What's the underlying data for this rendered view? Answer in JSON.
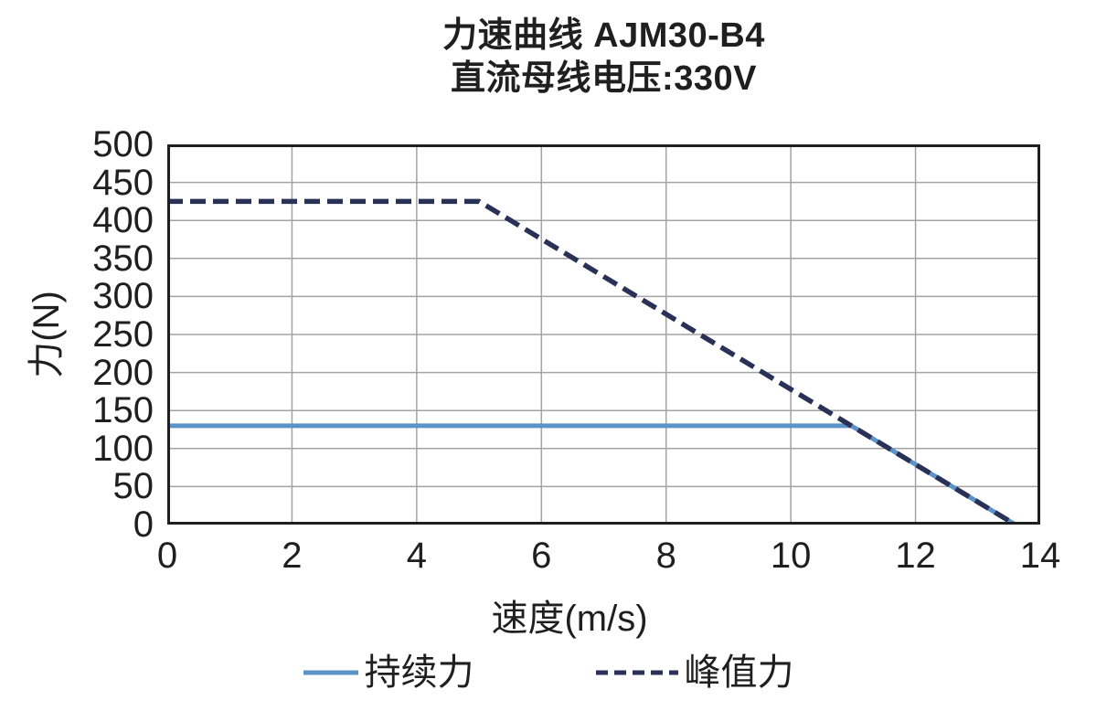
{
  "title": {
    "line1": "力速曲线 AJM30-B4",
    "line2": "直流母线电压:330V"
  },
  "chart_data": {
    "type": "line",
    "title": "力速曲线 AJM30-B4",
    "subtitle": "直流母线电压:330V",
    "xlabel": "速度(m/s)",
    "ylabel": "力(N)",
    "xlim": [
      0,
      14
    ],
    "ylim": [
      0,
      500
    ],
    "x_ticks": [
      0,
      2,
      4,
      6,
      8,
      10,
      12,
      14
    ],
    "y_ticks": [
      0,
      50,
      100,
      150,
      200,
      250,
      300,
      350,
      400,
      450,
      500
    ],
    "grid": true,
    "legend_position": "bottom",
    "series": [
      {
        "key": "continuous-force",
        "name": "持续力",
        "style": "solid",
        "color": "#5b93c8",
        "points": [
          [
            0,
            130
          ],
          [
            10.97,
            130
          ],
          [
            13.6,
            0
          ]
        ]
      },
      {
        "key": "peak-force",
        "name": "峰值力",
        "style": "dashed",
        "color": "#2a3156",
        "points": [
          [
            0,
            425
          ],
          [
            5,
            425
          ],
          [
            13.6,
            0
          ]
        ]
      }
    ],
    "colors": {
      "gridline": "#a3a3a3",
      "plot_border": "#1f1f1f",
      "text": "#1f1f1f"
    }
  }
}
